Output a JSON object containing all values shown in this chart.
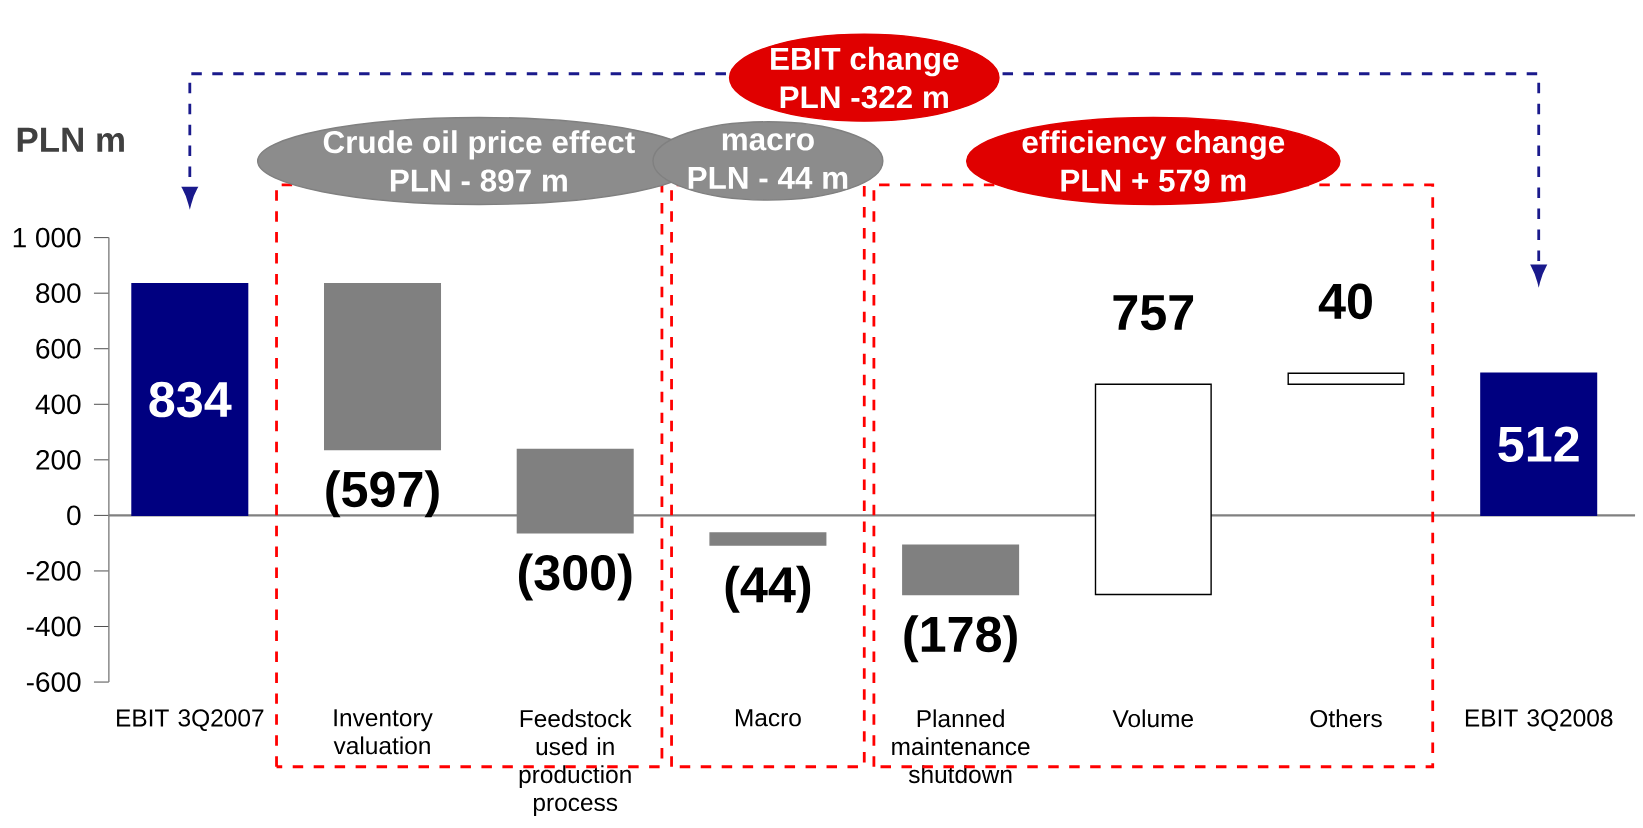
{
  "chart_data": {
    "type": "bar",
    "ylabel": "PLN m",
    "categories": [
      "EBIT 3Q2007",
      "Inventory valuation",
      "Feedstock used in production process",
      "Macro",
      "Planned maintenance shutdown",
      "Volume",
      "Others",
      "EBIT 3Q2008"
    ],
    "values": [
      834,
      -597,
      -300,
      -44,
      -178,
      757,
      40,
      512
    ],
    "base": [
      0,
      834,
      237,
      -63,
      -107,
      -285,
      472,
      0
    ],
    "colors": [
      "#000080",
      "#808080",
      "#808080",
      "#808080",
      "#808080",
      "#ffffff",
      "#ffffff",
      "#000080"
    ],
    "value_labels": [
      "834",
      "(597)",
      "(300)",
      "(44)",
      "(178)",
      "757",
      "40",
      "512"
    ],
    "ylim": [
      -600,
      1000
    ],
    "yticks": [
      -600,
      -400,
      -200,
      0,
      200,
      400,
      600,
      800,
      {
        "value": 1000,
        "label": "1 000"
      }
    ],
    "annotations": [
      "EBIT change",
      "PLN -322 m",
      "Crude oil price effect",
      "PLN - 897 m",
      "macro",
      "PLN - 44 m",
      "efficiency change",
      "PLN + 579 m"
    ]
  }
}
